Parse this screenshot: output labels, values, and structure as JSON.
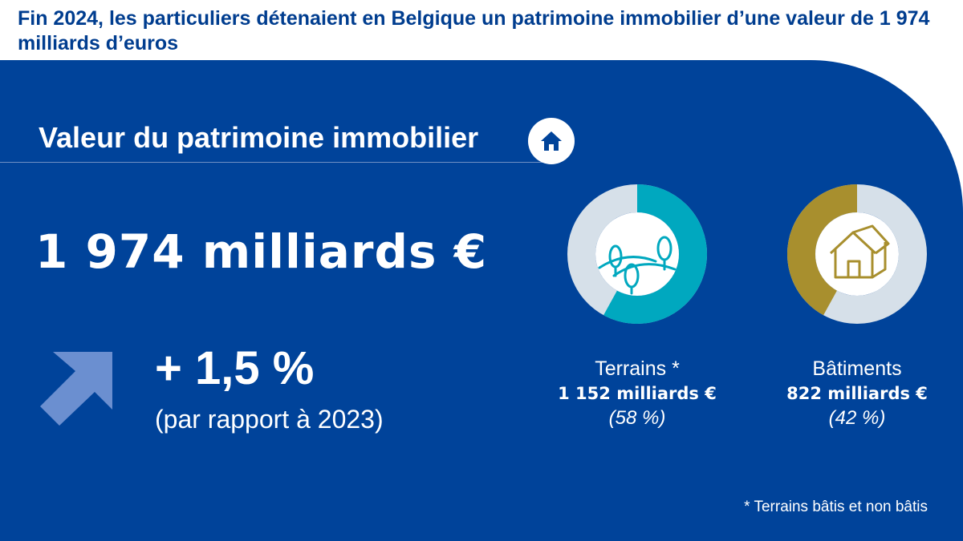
{
  "header": {
    "title": "Fin 2024, les particuliers détenaient en Belgique un patrimoine immobilier d’une valeur de 1 974 milliards d’euros"
  },
  "section": {
    "title": "Valeur du patrimoine immobilier",
    "icon": "house-icon"
  },
  "total": {
    "value": "1 974 milliards €",
    "change": "+ 1,5 %",
    "change_note": "(par rapport à 2023)",
    "icon": "arrow-up-right-icon"
  },
  "chart_data": [
    {
      "type": "pie",
      "categories": [
        "Terrains *",
        "Bâtiments"
      ],
      "values": [
        1152,
        822
      ],
      "percentages": [
        58,
        42
      ],
      "labels": [
        "1 152 milliards €",
        "822 milliards €"
      ],
      "share_labels": [
        "(58 %)",
        "(42 %)"
      ],
      "colors": [
        "#00a8bf",
        "#a88f2e"
      ],
      "remainder_color": "#d6e0e9",
      "icons": [
        "landscape-trees-icon",
        "house-outline-icon"
      ],
      "footnote": "* Terrains bâtis et non bâtis"
    }
  ],
  "colors": {
    "title": "#003d8f",
    "panel": "#00439a",
    "arrow": "#6b8fd0"
  }
}
